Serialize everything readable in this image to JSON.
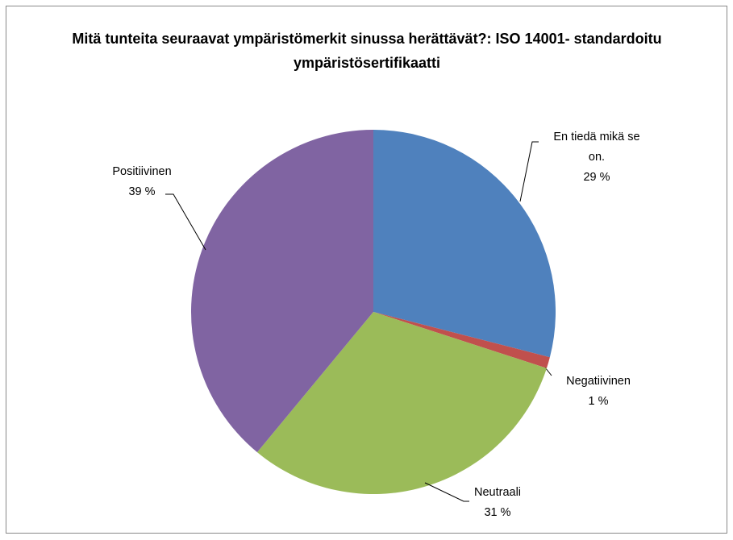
{
  "chart_data": {
    "type": "pie",
    "title": "Mitä tunteita seuraavat ympäristömerkit sinussa herättävät?: ISO 14001- standardoitu ympäristösertifikaatti",
    "categories": [
      "En tiedä mikä se on.",
      "Negatiivinen",
      "Neutraali",
      "Positiivinen"
    ],
    "values": [
      29,
      1,
      31,
      39
    ],
    "value_labels": [
      "29 %",
      "1 %",
      "31 %",
      "39 %"
    ],
    "colors": [
      "#4f81bd",
      "#c0504d",
      "#9bbb59",
      "#8064a2"
    ]
  }
}
